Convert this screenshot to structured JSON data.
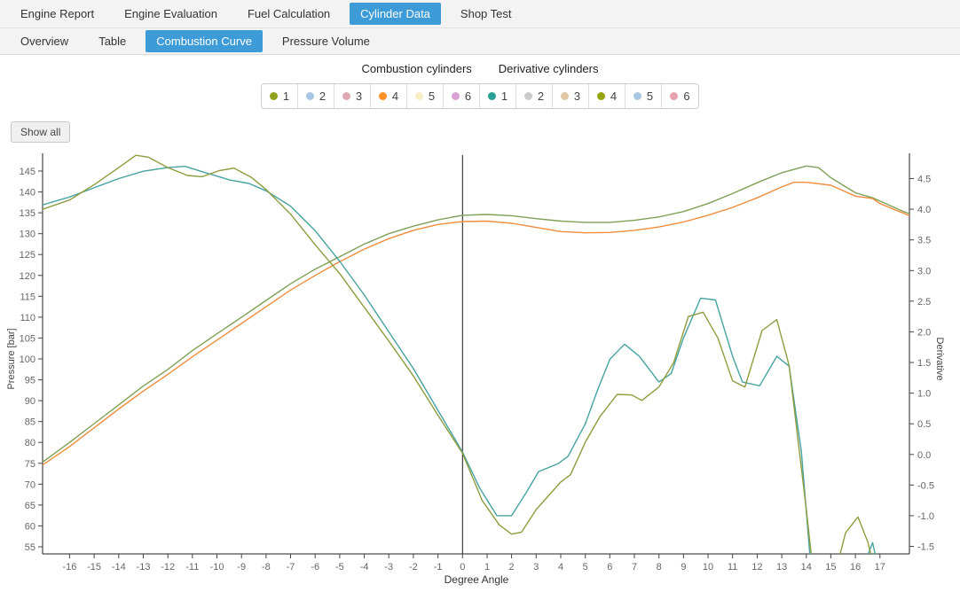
{
  "nav": {
    "tabs": [
      {
        "label": "Engine Report",
        "active": false
      },
      {
        "label": "Engine Evaluation",
        "active": false
      },
      {
        "label": "Fuel Calculation",
        "active": false
      },
      {
        "label": "Cylinder Data",
        "active": true
      },
      {
        "label": "Shop Test",
        "active": false
      }
    ]
  },
  "subnav": {
    "tabs": [
      {
        "label": "Overview",
        "active": false
      },
      {
        "label": "Table",
        "active": false
      },
      {
        "label": "Combustion Curve",
        "active": true
      },
      {
        "label": "Pressure Volume",
        "active": false
      }
    ]
  },
  "legend": {
    "groups": [
      {
        "label": "Combustion cylinders",
        "items": [
          {
            "label": "1",
            "color": "#8fa31c"
          },
          {
            "label": "2",
            "color": "#a9c7e3"
          },
          {
            "label": "3",
            "color": "#dfa9b4"
          },
          {
            "label": "4",
            "color": "#fe8f24"
          },
          {
            "label": "5",
            "color": "#f9edc4"
          },
          {
            "label": "6",
            "color": "#d8a2d4"
          }
        ]
      },
      {
        "label": "Derivative cylinders",
        "items": [
          {
            "label": "1",
            "color": "#27a095"
          },
          {
            "label": "2",
            "color": "#cbcbcb"
          },
          {
            "label": "3",
            "color": "#e0c8a4"
          },
          {
            "label": "4",
            "color": "#97a60b"
          },
          {
            "label": "5",
            "color": "#aac7e3"
          },
          {
            "label": "6",
            "color": "#e7a4ae"
          }
        ]
      }
    ]
  },
  "toolbar": {
    "show_all_label": "Show all"
  },
  "chart_data": {
    "type": "line",
    "xlabel": "Degree Angle",
    "x_range": [
      -17.1,
      18.2
    ],
    "x_ticks": [
      -16,
      -15,
      -14,
      -13,
      -12,
      -11,
      -10,
      -9,
      -8,
      -7,
      -6,
      -5,
      -4,
      -3,
      -2,
      -1,
      0,
      1,
      2,
      3,
      4,
      5,
      6,
      7,
      8,
      9,
      10,
      11,
      12,
      13,
      14,
      15,
      16,
      17
    ],
    "zero_line_x": 0,
    "grid": false,
    "left_axis": {
      "label": "Pressure [bar]",
      "range": [
        55,
        145
      ],
      "ticks": [
        55,
        60,
        65,
        70,
        75,
        80,
        85,
        90,
        95,
        100,
        105,
        110,
        115,
        120,
        125,
        130,
        135,
        140,
        145
      ]
    },
    "right_axis": {
      "label": "Derivative",
      "range": [
        -1.5,
        4.5
      ],
      "ticks": [
        -1.5,
        -1.0,
        -0.5,
        0.0,
        0.5,
        1.0,
        1.5,
        2.0,
        2.5,
        3.0,
        3.5,
        4.0,
        4.5
      ]
    },
    "series": [
      {
        "name": "Combustion cylinder 1",
        "axis": "left",
        "color": "#7fa057",
        "points": [
          [
            -17.1,
            75.3
          ],
          [
            -16,
            80
          ],
          [
            -15,
            84.5
          ],
          [
            -14,
            89
          ],
          [
            -13,
            93.5
          ],
          [
            -12,
            97.5
          ],
          [
            -11,
            102
          ],
          [
            -10,
            106
          ],
          [
            -9,
            110
          ],
          [
            -8,
            114
          ],
          [
            -7,
            118
          ],
          [
            -6,
            121.5
          ],
          [
            -5,
            124.5
          ],
          [
            -4,
            127.5
          ],
          [
            -3,
            130
          ],
          [
            -2,
            131.8
          ],
          [
            -1,
            133.3
          ],
          [
            0,
            134.4
          ],
          [
            1,
            134.6
          ],
          [
            2,
            134.3
          ],
          [
            3,
            133.6
          ],
          [
            4,
            133
          ],
          [
            5,
            132.7
          ],
          [
            6,
            132.7
          ],
          [
            7,
            133.2
          ],
          [
            8,
            134
          ],
          [
            9,
            135.3
          ],
          [
            10,
            137.2
          ],
          [
            11,
            139.6
          ],
          [
            12,
            142.2
          ],
          [
            13,
            144.6
          ],
          [
            14,
            146.2
          ],
          [
            14.5,
            145.8
          ],
          [
            15,
            143.4
          ],
          [
            16,
            139.8
          ],
          [
            16.7,
            138.6
          ],
          [
            17,
            137.8
          ],
          [
            18,
            135.2
          ],
          [
            18.2,
            134.8
          ]
        ]
      },
      {
        "name": "Combustion cylinder 4",
        "axis": "left",
        "color": "#ef8d3d",
        "points": [
          [
            -17.1,
            74.6
          ],
          [
            -16,
            79
          ],
          [
            -15,
            83.5
          ],
          [
            -14,
            88
          ],
          [
            -13,
            92.3
          ],
          [
            -12,
            96.3
          ],
          [
            -11,
            100.5
          ],
          [
            -10,
            104.5
          ],
          [
            -9,
            108.5
          ],
          [
            -8,
            112.5
          ],
          [
            -7,
            116.5
          ],
          [
            -6,
            120
          ],
          [
            -5,
            123.3
          ],
          [
            -4,
            126.3
          ],
          [
            -3,
            128.8
          ],
          [
            -2,
            130.8
          ],
          [
            -1,
            132.2
          ],
          [
            0,
            132.9
          ],
          [
            1,
            133
          ],
          [
            2,
            132.5
          ],
          [
            3,
            131.5
          ],
          [
            4,
            130.5
          ],
          [
            5,
            130.2
          ],
          [
            6,
            130.3
          ],
          [
            7,
            130.8
          ],
          [
            8,
            131.6
          ],
          [
            9,
            132.8
          ],
          [
            10,
            134.4
          ],
          [
            11,
            136.3
          ],
          [
            12,
            138.6
          ],
          [
            13,
            141.2
          ],
          [
            13.5,
            142.3
          ],
          [
            14,
            142.3
          ],
          [
            15,
            141.6
          ],
          [
            16,
            139
          ],
          [
            16.7,
            138.4
          ],
          [
            17,
            137.2
          ],
          [
            18,
            134.8
          ],
          [
            18.2,
            134.3
          ]
        ]
      },
      {
        "name": "Derivative cylinder 1",
        "axis": "right",
        "color": "#46a3a1",
        "points": [
          [
            -17.1,
            4.07
          ],
          [
            -16,
            4.2
          ],
          [
            -15,
            4.35
          ],
          [
            -14,
            4.5
          ],
          [
            -13,
            4.62
          ],
          [
            -12,
            4.68
          ],
          [
            -11.3,
            4.7
          ],
          [
            -10.5,
            4.6
          ],
          [
            -9.5,
            4.48
          ],
          [
            -8.7,
            4.42
          ],
          [
            -8,
            4.3
          ],
          [
            -7,
            4.05
          ],
          [
            -6,
            3.65
          ],
          [
            -5,
            3.15
          ],
          [
            -4,
            2.6
          ],
          [
            -3,
            2.0
          ],
          [
            -2,
            1.4
          ],
          [
            -1,
            0.72
          ],
          [
            0,
            0.04
          ],
          [
            0.7,
            -0.55
          ],
          [
            1.4,
            -1.0
          ],
          [
            2,
            -1.0
          ],
          [
            2.6,
            -0.62
          ],
          [
            3.1,
            -0.28
          ],
          [
            3.9,
            -0.15
          ],
          [
            4.3,
            -0.03
          ],
          [
            5,
            0.5
          ],
          [
            5.5,
            1.05
          ],
          [
            6,
            1.55
          ],
          [
            6.6,
            1.8
          ],
          [
            7.2,
            1.6
          ],
          [
            8,
            1.18
          ],
          [
            8.5,
            1.32
          ],
          [
            9,
            1.9
          ],
          [
            9.7,
            2.55
          ],
          [
            10.3,
            2.52
          ],
          [
            11,
            1.6
          ],
          [
            11.4,
            1.18
          ],
          [
            12.1,
            1.12
          ],
          [
            12.8,
            1.6
          ],
          [
            13.3,
            1.44
          ],
          [
            13.8,
            0.05
          ],
          [
            14.2,
            -1.9
          ],
          [
            15,
            -2.4
          ],
          [
            16,
            -2.1
          ],
          [
            16.4,
            -1.75
          ],
          [
            16.7,
            -1.44
          ],
          [
            16.9,
            -1.8
          ],
          [
            17.2,
            -2.4
          ]
        ]
      },
      {
        "name": "Derivative cylinder 4",
        "axis": "right",
        "color": "#8e9c3f",
        "points": [
          [
            -17.1,
            4.0
          ],
          [
            -16,
            4.15
          ],
          [
            -15,
            4.4
          ],
          [
            -14,
            4.68
          ],
          [
            -13.3,
            4.88
          ],
          [
            -12.8,
            4.85
          ],
          [
            -12,
            4.68
          ],
          [
            -11.2,
            4.55
          ],
          [
            -10.6,
            4.53
          ],
          [
            -9.9,
            4.63
          ],
          [
            -9.3,
            4.67
          ],
          [
            -8.6,
            4.52
          ],
          [
            -8,
            4.32
          ],
          [
            -7,
            3.92
          ],
          [
            -6,
            3.42
          ],
          [
            -5,
            2.95
          ],
          [
            -4,
            2.4
          ],
          [
            -3,
            1.85
          ],
          [
            -2,
            1.28
          ],
          [
            -1,
            0.64
          ],
          [
            0,
            0.02
          ],
          [
            0.8,
            -0.75
          ],
          [
            1.5,
            -1.15
          ],
          [
            2,
            -1.3
          ],
          [
            2.4,
            -1.27
          ],
          [
            3,
            -0.9
          ],
          [
            4,
            -0.45
          ],
          [
            4.4,
            -0.33
          ],
          [
            5,
            0.2
          ],
          [
            5.6,
            0.62
          ],
          [
            6.3,
            0.98
          ],
          [
            6.9,
            0.97
          ],
          [
            7.3,
            0.88
          ],
          [
            8,
            1.1
          ],
          [
            8.6,
            1.5
          ],
          [
            9.2,
            2.25
          ],
          [
            9.8,
            2.32
          ],
          [
            10.4,
            1.9
          ],
          [
            11,
            1.2
          ],
          [
            11.5,
            1.1
          ],
          [
            12.2,
            2.02
          ],
          [
            12.8,
            2.2
          ],
          [
            13.3,
            1.45
          ],
          [
            14,
            -0.9
          ],
          [
            14.3,
            -2.0
          ],
          [
            15.2,
            -1.9
          ],
          [
            15.6,
            -1.28
          ],
          [
            16.1,
            -1.02
          ],
          [
            16.5,
            -1.42
          ],
          [
            16.8,
            -1.9
          ],
          [
            17.2,
            -2.4
          ]
        ]
      }
    ]
  }
}
